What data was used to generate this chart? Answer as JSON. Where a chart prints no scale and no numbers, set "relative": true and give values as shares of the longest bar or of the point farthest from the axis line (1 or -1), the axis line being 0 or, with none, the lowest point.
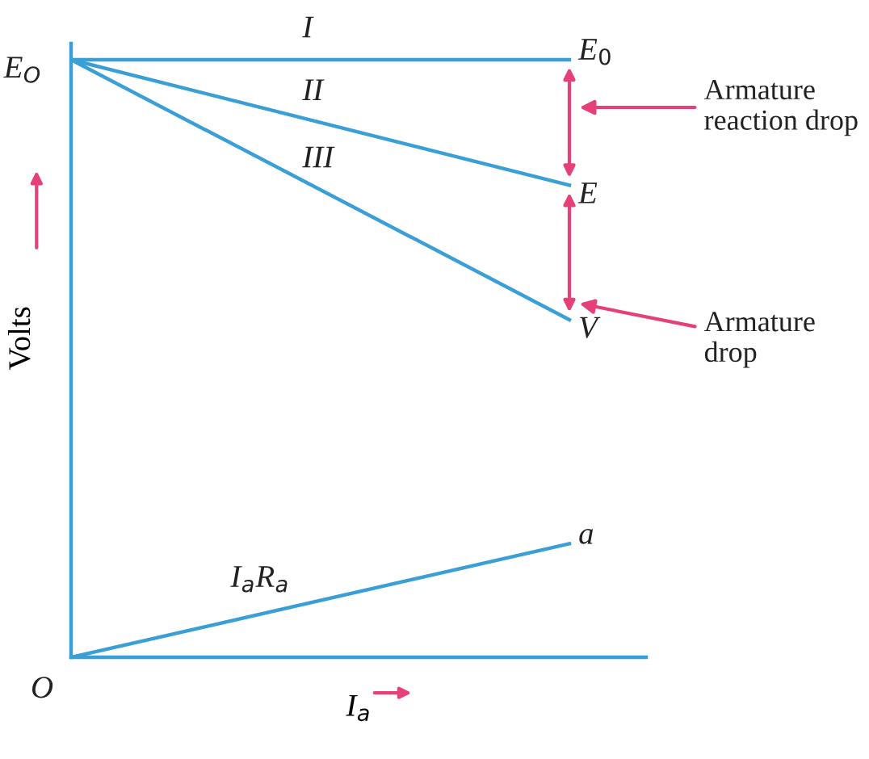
{
  "chart_data": {
    "type": "line",
    "relative": true,
    "xlabel": "I$_{a}$",
    "ylabel": "Volts",
    "categories": [
      null,
      null
    ],
    "series": [
      {
        "name": "I",
        "color": "#3a9fd6",
        "values": [
          1,
          1
        ]
      },
      {
        "name": "II",
        "color": "#3a9fd6",
        "values": [
          1,
          0.79
        ]
      },
      {
        "name": "III",
        "color": "#3a9fd6",
        "values": [
          1,
          0.565
        ]
      },
      {
        "name": "I$_{a}$R$_{a}$",
        "color": "#3a9fd6",
        "values": [
          0,
          0.19
        ]
      }
    ],
    "annotations": [
      "E$_{O}$",
      "O",
      "E$_{0}$",
      "E",
      "V",
      "a",
      "Armature reaction drop",
      "Armature drop"
    ],
    "marker": "none",
    "line_style": "solid",
    "grid": false,
    "legend": false
  }
}
